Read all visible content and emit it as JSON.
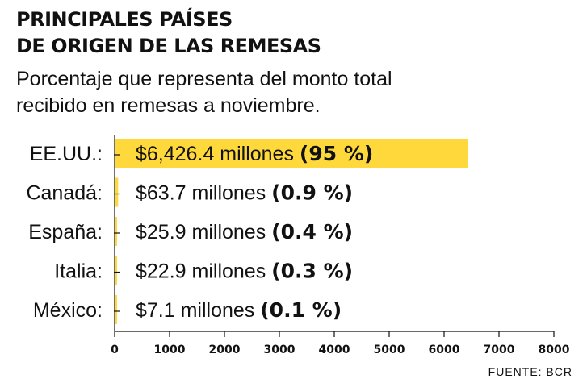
{
  "title_line1": "PRINCIPALES PAÍSES",
  "title_line2": "DE ORIGEN DE LAS REMESAS",
  "subtitle_line1": "Porcentaje que representa del monto total",
  "subtitle_line2": "recibido en remesas a noviembre.",
  "source": "FUENTE: BCR",
  "colors": {
    "bar": "#FFD93B",
    "text": "#111111",
    "axis": "#111111"
  },
  "chart_data": {
    "type": "bar",
    "orientation": "horizontal",
    "categories": [
      "EE.UU.:",
      "Canadá:",
      "España:",
      "Italia:",
      "México:"
    ],
    "values": [
      6426.4,
      63.7,
      25.9,
      22.9,
      7.1
    ],
    "data_labels": [
      {
        "amount": "$6,426.4 millones",
        "share": "(95 %)"
      },
      {
        "amount": "$63.7 millones",
        "share": "(0.9 %)"
      },
      {
        "amount": "$25.9 millones",
        "share": "(0.4 %)"
      },
      {
        "amount": "$22.9 millones",
        "share": "(0.3 %)"
      },
      {
        "amount": "$7.1 millones",
        "share": "(0.1 %)"
      }
    ],
    "xlim": [
      0,
      8000
    ],
    "xticks": [
      0,
      1000,
      2000,
      3000,
      4000,
      5000,
      6000,
      7000,
      8000
    ],
    "title": "PRINCIPALES PAÍSES DE ORIGEN DE LAS REMESAS",
    "subtitle": "Porcentaje que representa del monto total recibido en remesas a noviembre.",
    "xlabel": "",
    "ylabel": "",
    "grid": false
  }
}
